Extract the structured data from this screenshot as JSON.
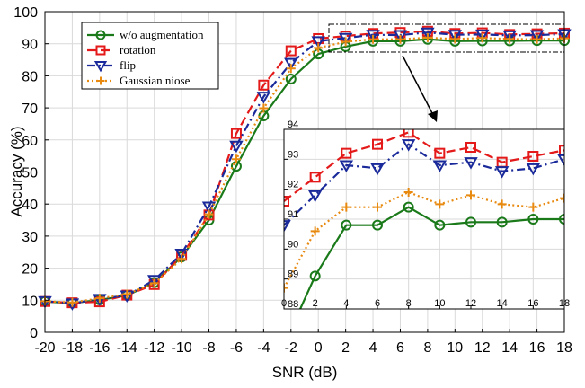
{
  "chart_data": [
    {
      "type": "line",
      "title": "",
      "xlabel": "SNR (dB)",
      "ylabel": "Accuracy (%)",
      "x": [
        -20,
        -18,
        -16,
        -14,
        -12,
        -10,
        -8,
        -6,
        -4,
        -2,
        0,
        2,
        4,
        6,
        8,
        10,
        12,
        14,
        16,
        18
      ],
      "xlim": [
        -20,
        18
      ],
      "ylim": [
        0,
        100
      ],
      "x_ticks": [
        "-20",
        "-18",
        "-16",
        "-14",
        "-12",
        "-10",
        "-8",
        "-6",
        "-4",
        "-2",
        "0",
        "2",
        "4",
        "6",
        "8",
        "10",
        "12",
        "14",
        "16",
        "18"
      ],
      "y_ticks": [
        "0",
        "10",
        "20",
        "30",
        "40",
        "50",
        "60",
        "70",
        "80",
        "90",
        "100"
      ],
      "grid": true,
      "legend_position": "top-left",
      "series": [
        {
          "name": "w/o augmentation",
          "color": "#1a7a1a",
          "line": "solid",
          "marker": "circle",
          "values": [
            9.6,
            9.1,
            10.1,
            11.5,
            15.5,
            23.5,
            35.0,
            51.8,
            67.5,
            79.0,
            86.8,
            89.1,
            90.8,
            90.8,
            91.4,
            90.8,
            90.9,
            90.9,
            91.0,
            91.0
          ]
        },
        {
          "name": "rotation",
          "color": "#e41a1a",
          "line": "dashed",
          "marker": "square",
          "values": [
            9.6,
            9.2,
            9.5,
            11.6,
            14.9,
            24.0,
            36.6,
            62.0,
            77.1,
            87.8,
            91.6,
            92.4,
            93.2,
            93.5,
            93.9,
            93.2,
            93.4,
            92.9,
            93.1,
            93.3
          ]
        },
        {
          "name": "flip",
          "color": "#1a2a9a",
          "line": "dashdot",
          "marker": "triangle-down",
          "values": [
            9.7,
            9.0,
            10.4,
            11.5,
            16.3,
            24.5,
            39.2,
            58.2,
            73.5,
            84.0,
            90.8,
            91.8,
            92.8,
            92.7,
            93.5,
            92.8,
            92.9,
            92.6,
            92.7,
            93.0
          ]
        },
        {
          "name": "Gaussian niose",
          "color": "#e88a10",
          "line": "dotted",
          "marker": "plus",
          "values": [
            9.7,
            9.3,
            10.6,
            11.9,
            15.3,
            22.9,
            36.8,
            54.0,
            69.9,
            82.3,
            88.7,
            90.6,
            91.4,
            91.4,
            91.9,
            91.5,
            91.8,
            91.5,
            91.4,
            91.7
          ]
        }
      ]
    },
    {
      "type": "line",
      "title": "",
      "xlabel": "",
      "ylabel": "",
      "x": [
        0,
        2,
        4,
        6,
        8,
        10,
        12,
        14,
        16,
        18
      ],
      "xlim": [
        0,
        18
      ],
      "ylim": [
        88,
        94
      ],
      "x_ticks": [
        "0",
        "2",
        "4",
        "6",
        "8",
        "10",
        "12",
        "14",
        "16",
        "18"
      ],
      "y_ticks": [
        "88",
        "89",
        "90",
        "91",
        "92",
        "93",
        "94"
      ],
      "grid": true,
      "inset_of": "main plot, zoomed region SNR 0 to 18 dB",
      "series": [
        {
          "name": "w/o augmentation",
          "color": "#1a7a1a",
          "line": "solid",
          "marker": "circle",
          "values": [
            86.8,
            89.1,
            90.8,
            90.8,
            91.4,
            90.8,
            90.9,
            90.9,
            91.0,
            91.0
          ]
        },
        {
          "name": "rotation",
          "color": "#e41a1a",
          "line": "dashed",
          "marker": "square",
          "values": [
            91.6,
            92.4,
            93.2,
            93.5,
            93.9,
            93.2,
            93.4,
            92.9,
            93.1,
            93.3
          ]
        },
        {
          "name": "flip",
          "color": "#1a2a9a",
          "line": "dashdot",
          "marker": "triangle-down",
          "values": [
            90.8,
            91.8,
            92.8,
            92.7,
            93.5,
            92.8,
            92.9,
            92.6,
            92.7,
            93.0
          ]
        },
        {
          "name": "Gaussian niose",
          "color": "#e88a10",
          "line": "dotted",
          "marker": "plus",
          "values": [
            88.7,
            90.6,
            91.4,
            91.4,
            91.9,
            91.5,
            91.8,
            91.5,
            91.4,
            91.7
          ]
        }
      ]
    }
  ]
}
